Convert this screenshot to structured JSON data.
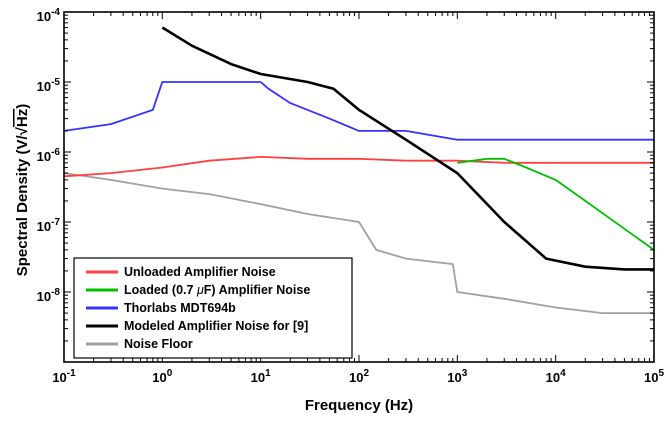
{
  "chart_data": {
    "type": "line",
    "xlabel": "Frequency (Hz)",
    "ylabel": "Spectral  Density  (V/√Hz)",
    "ylabel_text": "Spectral  Density  (V/",
    "ylabel_radical": "√",
    "ylabel_radicand": "Hz",
    "ylabel_close": ")",
    "x_scale": "log",
    "y_scale": "log",
    "xlim": [
      0.1,
      100000
    ],
    "ylim": [
      1e-09,
      0.0001
    ],
    "x_ticks": [
      {
        "base": "10",
        "exp": "-1"
      },
      {
        "base": "10",
        "exp": "0"
      },
      {
        "base": "10",
        "exp": "1"
      },
      {
        "base": "10",
        "exp": "2"
      },
      {
        "base": "10",
        "exp": "3"
      },
      {
        "base": "10",
        "exp": "4"
      },
      {
        "base": "10",
        "exp": "5"
      }
    ],
    "y_ticks": [
      {
        "base": "10",
        "exp": "-8"
      },
      {
        "base": "10",
        "exp": "-7"
      },
      {
        "base": "10",
        "exp": "-6"
      },
      {
        "base": "10",
        "exp": "-5"
      },
      {
        "base": "10",
        "exp": "-4"
      }
    ],
    "grid": false,
    "legend_position": "bottom-left",
    "series": [
      {
        "name": "Unloaded Amplifier Noise",
        "color": "#ff4040",
        "x": [
          0.1,
          0.3,
          1,
          3,
          10,
          30,
          100,
          300,
          1000,
          3000,
          10000,
          30000,
          100000
        ],
        "y": [
          4.5e-07,
          5e-07,
          6e-07,
          7.5e-07,
          8.5e-07,
          8e-07,
          8e-07,
          7.5e-07,
          7.5e-07,
          7e-07,
          7e-07,
          7e-07,
          7e-07
        ]
      },
      {
        "name": "Loaded (0.7 μF) Amplifier Noise",
        "legend_prefix": "Loaded (0.7 ",
        "legend_mu": "μ",
        "legend_suffix": "F) Amplifier Noise",
        "color": "#00c000",
        "x": [
          1000,
          2000,
          3000,
          5000,
          10000,
          20000,
          50000,
          100000
        ],
        "y": [
          7e-07,
          8e-07,
          8e-07,
          6e-07,
          4e-07,
          2e-07,
          8e-08,
          4e-08
        ]
      },
      {
        "name": "Thorlabs MDT694b",
        "color": "#3333ff",
        "x": [
          0.1,
          0.3,
          0.8,
          1,
          2,
          5,
          10,
          12,
          20,
          50,
          100,
          300,
          1000,
          3000,
          10000,
          30000,
          100000
        ],
        "y": [
          2e-06,
          2.5e-06,
          4e-06,
          1e-05,
          1e-05,
          1e-05,
          1e-05,
          8e-06,
          5e-06,
          3e-06,
          2e-06,
          2e-06,
          1.5e-06,
          1.5e-06,
          1.5e-06,
          1.5e-06,
          1.5e-06
        ]
      },
      {
        "name": "Modeled Amplifier Noise for [9]",
        "color": "#000000",
        "x": [
          1,
          2,
          5,
          10,
          30,
          55,
          100,
          300,
          1000,
          3000,
          8000,
          20000,
          50000,
          100000
        ],
        "y": [
          6e-05,
          3.3e-05,
          1.8e-05,
          1.3e-05,
          1e-05,
          8e-06,
          4e-06,
          1.5e-06,
          5e-07,
          1e-07,
          3e-08,
          2.3e-08,
          2.1e-08,
          2.1e-08
        ]
      },
      {
        "name": "Noise Floor",
        "color": "#a0a0a0",
        "x": [
          0.1,
          0.3,
          1,
          3,
          10,
          30,
          100,
          150,
          300,
          900,
          1000,
          3000,
          10000,
          30000,
          100000
        ],
        "y": [
          5e-07,
          4e-07,
          3e-07,
          2.5e-07,
          1.8e-07,
          1.3e-07,
          1e-07,
          4e-08,
          3e-08,
          2.5e-08,
          1e-08,
          8e-09,
          6e-09,
          5e-09,
          5e-09
        ]
      }
    ]
  }
}
